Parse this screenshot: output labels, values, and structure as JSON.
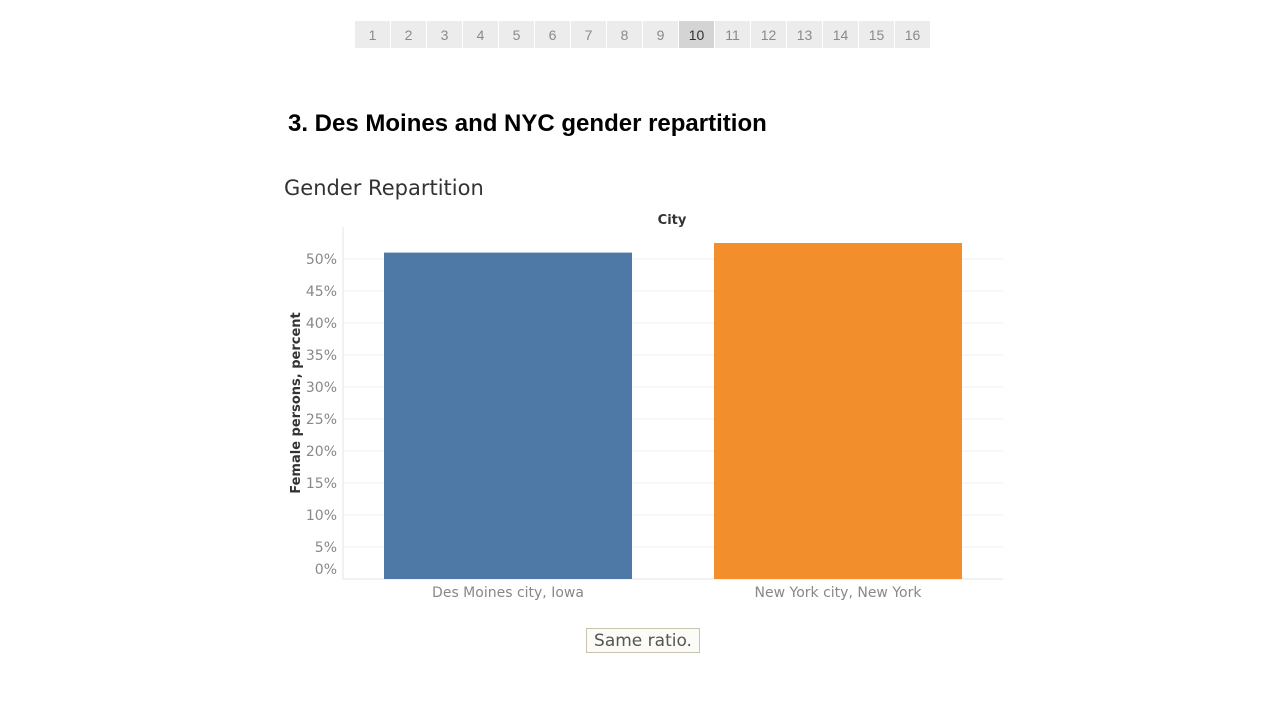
{
  "pager": {
    "pages": [
      "1",
      "2",
      "3",
      "4",
      "5",
      "6",
      "7",
      "8",
      "9",
      "10",
      "11",
      "12",
      "13",
      "14",
      "15",
      "16"
    ],
    "active": "10"
  },
  "story_title": "3. Des Moines and NYC gender repartition",
  "caption": "Same ratio.",
  "colors": {
    "des_moines_bar": "#4e79a7",
    "new_york_bar": "#f28e2b",
    "tick_text": "#888888",
    "grid": "#f2f2f2"
  },
  "chart_data": {
    "type": "bar",
    "title": "Gender Repartition",
    "column_header": "City",
    "ylabel": "Female persons, percent",
    "xlabel": "",
    "categories": [
      "Des Moines city, Iowa",
      "New York city, New York"
    ],
    "values": [
      51.0,
      52.5
    ],
    "ylim": [
      0,
      52.5
    ],
    "yticks": [
      0,
      5,
      10,
      15,
      20,
      25,
      30,
      35,
      40,
      45,
      50
    ],
    "ytick_labels": [
      "0%",
      "5%",
      "10%",
      "15%",
      "20%",
      "25%",
      "30%",
      "35%",
      "40%",
      "45%",
      "50%"
    ],
    "grid": true,
    "legend": "none"
  }
}
